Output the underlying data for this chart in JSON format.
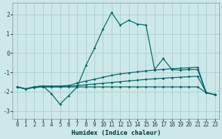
{
  "xlabel": "Humidex (Indice chaleur)",
  "bg_color": "#cce8e8",
  "line_color": "#006666",
  "grid_color": "#aacccc",
  "xlim": [
    -0.5,
    23.5
  ],
  "ylim": [
    -3.4,
    2.6
  ],
  "xticks": [
    0,
    1,
    2,
    3,
    4,
    5,
    6,
    7,
    8,
    9,
    10,
    11,
    12,
    13,
    14,
    15,
    16,
    17,
    18,
    19,
    20,
    21,
    22,
    23
  ],
  "yticks": [
    -3,
    -2,
    -1,
    0,
    1,
    2
  ],
  "curve1_x": [
    0,
    1,
    2,
    3,
    4,
    5,
    6,
    7,
    8,
    9,
    10,
    11,
    12,
    13,
    14,
    15,
    16,
    17,
    18,
    19,
    20,
    21,
    22,
    23
  ],
  "curve1_y": [
    -1.75,
    -1.85,
    -1.75,
    -1.7,
    -2.1,
    -2.65,
    -2.2,
    -1.75,
    -0.65,
    0.25,
    1.25,
    2.1,
    1.45,
    1.7,
    1.5,
    1.45,
    -0.85,
    -0.28,
    -0.85,
    -0.88,
    -0.85,
    -0.85,
    -2.05,
    -2.15
  ],
  "curve2_x": [
    0,
    1,
    2,
    3,
    4,
    5,
    6,
    7,
    8,
    9,
    10,
    11,
    12,
    13,
    14,
    15,
    16,
    17,
    18,
    19,
    20,
    21,
    22,
    23
  ],
  "curve2_y": [
    -1.75,
    -1.85,
    -1.75,
    -1.7,
    -1.7,
    -1.7,
    -1.68,
    -1.55,
    -1.45,
    -1.35,
    -1.25,
    -1.15,
    -1.08,
    -1.02,
    -0.97,
    -0.92,
    -0.88,
    -0.84,
    -0.81,
    -0.78,
    -0.76,
    -0.73,
    -2.05,
    -2.15
  ],
  "curve3_x": [
    0,
    1,
    2,
    3,
    4,
    5,
    6,
    7,
    8,
    9,
    10,
    11,
    12,
    13,
    14,
    15,
    16,
    17,
    18,
    19,
    20,
    21,
    22,
    23
  ],
  "curve3_y": [
    -1.75,
    -1.85,
    -1.78,
    -1.75,
    -1.75,
    -1.75,
    -1.72,
    -1.68,
    -1.64,
    -1.6,
    -1.56,
    -1.52,
    -1.48,
    -1.44,
    -1.4,
    -1.36,
    -1.33,
    -1.3,
    -1.27,
    -1.25,
    -1.22,
    -1.2,
    -2.05,
    -2.15
  ],
  "curve4_x": [
    0,
    1,
    2,
    3,
    4,
    5,
    6,
    7,
    8,
    9,
    10,
    11,
    12,
    13,
    14,
    15,
    16,
    17,
    18,
    19,
    20,
    21,
    22,
    23
  ],
  "curve4_y": [
    -1.75,
    -1.85,
    -1.78,
    -1.75,
    -1.75,
    -1.75,
    -1.75,
    -1.75,
    -1.75,
    -1.75,
    -1.75,
    -1.75,
    -1.75,
    -1.75,
    -1.75,
    -1.75,
    -1.75,
    -1.75,
    -1.75,
    -1.75,
    -1.75,
    -1.75,
    -2.05,
    -2.15
  ]
}
